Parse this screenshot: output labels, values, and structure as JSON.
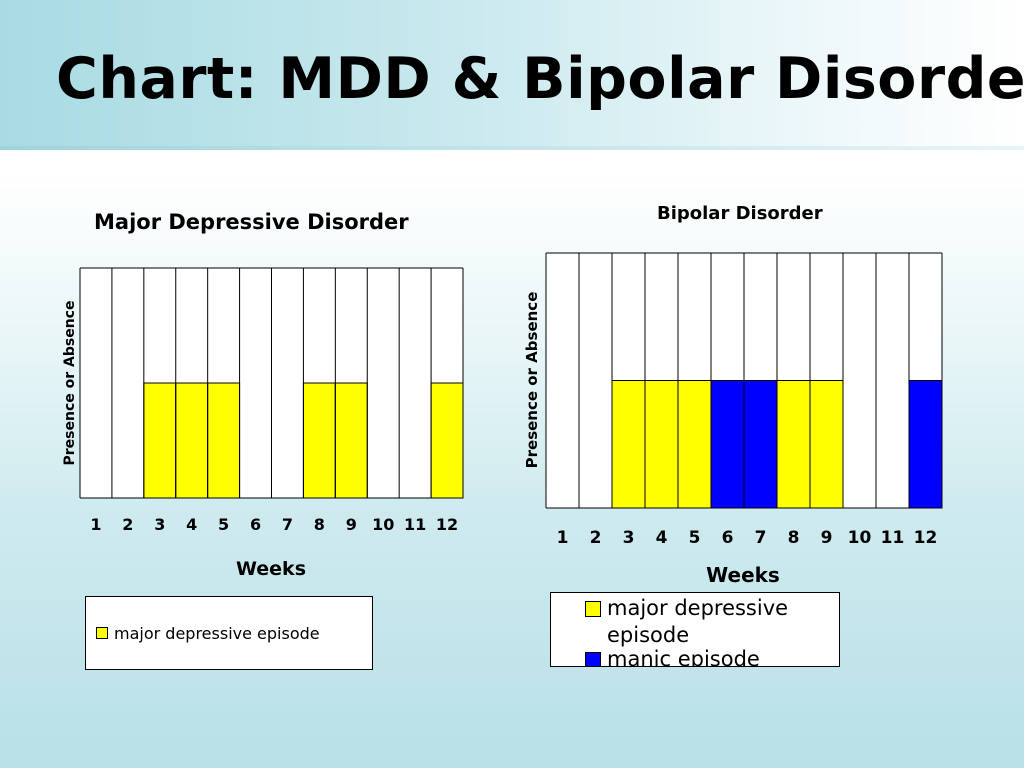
{
  "slide": {
    "title": "Chart:  MDD & Bipolar Disorder"
  },
  "colors": {
    "major_depressive": "#ffff00",
    "manic": "#0000ff",
    "grid": "#000000",
    "background": "#ffffff"
  },
  "chart_data": [
    {
      "type": "bar",
      "title": "Major Depressive Disorder",
      "xlabel": "Weeks",
      "ylabel": "Presence or Absence",
      "categories": [
        "1",
        "2",
        "3",
        "4",
        "5",
        "6",
        "7",
        "8",
        "9",
        "10",
        "11",
        "12"
      ],
      "ylim": [
        0,
        2
      ],
      "grid": true,
      "legend_position": "bottom",
      "series": [
        {
          "name": "major depressive episode",
          "color": "#ffff00",
          "values": [
            0,
            0,
            1,
            1,
            1,
            0,
            0,
            1,
            1,
            0,
            0,
            1
          ]
        }
      ]
    },
    {
      "type": "bar",
      "title": "Bipolar Disorder",
      "xlabel": "Weeks",
      "ylabel": "Presence or Absence",
      "categories": [
        "1",
        "2",
        "3",
        "4",
        "5",
        "6",
        "7",
        "8",
        "9",
        "10",
        "11",
        "12"
      ],
      "ylim": [
        0,
        2
      ],
      "grid": true,
      "legend_position": "bottom",
      "series": [
        {
          "name": "major depressive episode",
          "color": "#ffff00",
          "values": [
            0,
            0,
            1,
            1,
            1,
            0,
            0,
            1,
            1,
            0,
            0,
            0
          ]
        },
        {
          "name": "manic episode",
          "color": "#0000ff",
          "values": [
            0,
            0,
            0,
            0,
            0,
            1,
            1,
            0,
            0,
            0,
            0,
            1
          ]
        }
      ]
    }
  ]
}
